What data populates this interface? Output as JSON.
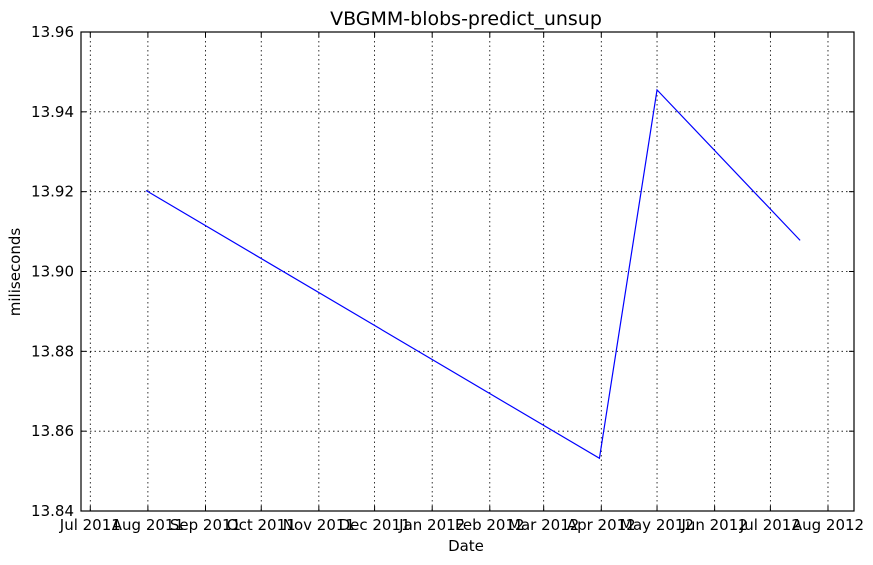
{
  "chart_data": {
    "type": "line",
    "title": "VBGMM-blobs-predict_unsup",
    "xlabel": "Date",
    "ylabel": "miliseconds",
    "xlim": [
      "2011-06-26",
      "2012-08-15"
    ],
    "ylim": [
      13.84,
      13.96
    ],
    "x_ticks": [
      {
        "date": "2011-07-01",
        "label": "Jul 2011"
      },
      {
        "date": "2011-08-01",
        "label": "Aug 2011"
      },
      {
        "date": "2011-09-01",
        "label": "Sep 2011"
      },
      {
        "date": "2011-10-01",
        "label": "Oct 2011"
      },
      {
        "date": "2011-11-01",
        "label": "Nov 2011"
      },
      {
        "date": "2011-12-01",
        "label": "Dec 2011"
      },
      {
        "date": "2012-01-01",
        "label": "Jan 2012"
      },
      {
        "date": "2012-02-01",
        "label": "Feb 2012"
      },
      {
        "date": "2012-03-01",
        "label": "Mar 2012"
      },
      {
        "date": "2012-04-01",
        "label": "Apr 2012"
      },
      {
        "date": "2012-05-01",
        "label": "May 2012"
      },
      {
        "date": "2012-06-01",
        "label": "Jun 2012"
      },
      {
        "date": "2012-07-01",
        "label": "Jul 2012"
      },
      {
        "date": "2012-08-01",
        "label": "Aug 2012"
      }
    ],
    "y_ticks": [
      {
        "value": 13.84,
        "label": "13.84"
      },
      {
        "value": 13.86,
        "label": "13.86"
      },
      {
        "value": 13.88,
        "label": "13.88"
      },
      {
        "value": 13.9,
        "label": "13.90"
      },
      {
        "value": 13.92,
        "label": "13.92"
      },
      {
        "value": 13.94,
        "label": "13.94"
      },
      {
        "value": 13.96,
        "label": "13.96"
      }
    ],
    "grid": true,
    "series": [
      {
        "color": "#0000ff",
        "points": [
          {
            "x": "2011-07-31",
            "y": 13.9203
          },
          {
            "x": "2012-03-31",
            "y": 13.8532
          },
          {
            "x": "2012-05-01",
            "y": 13.9455
          },
          {
            "x": "2012-07-17",
            "y": 13.9078
          }
        ]
      }
    ]
  }
}
